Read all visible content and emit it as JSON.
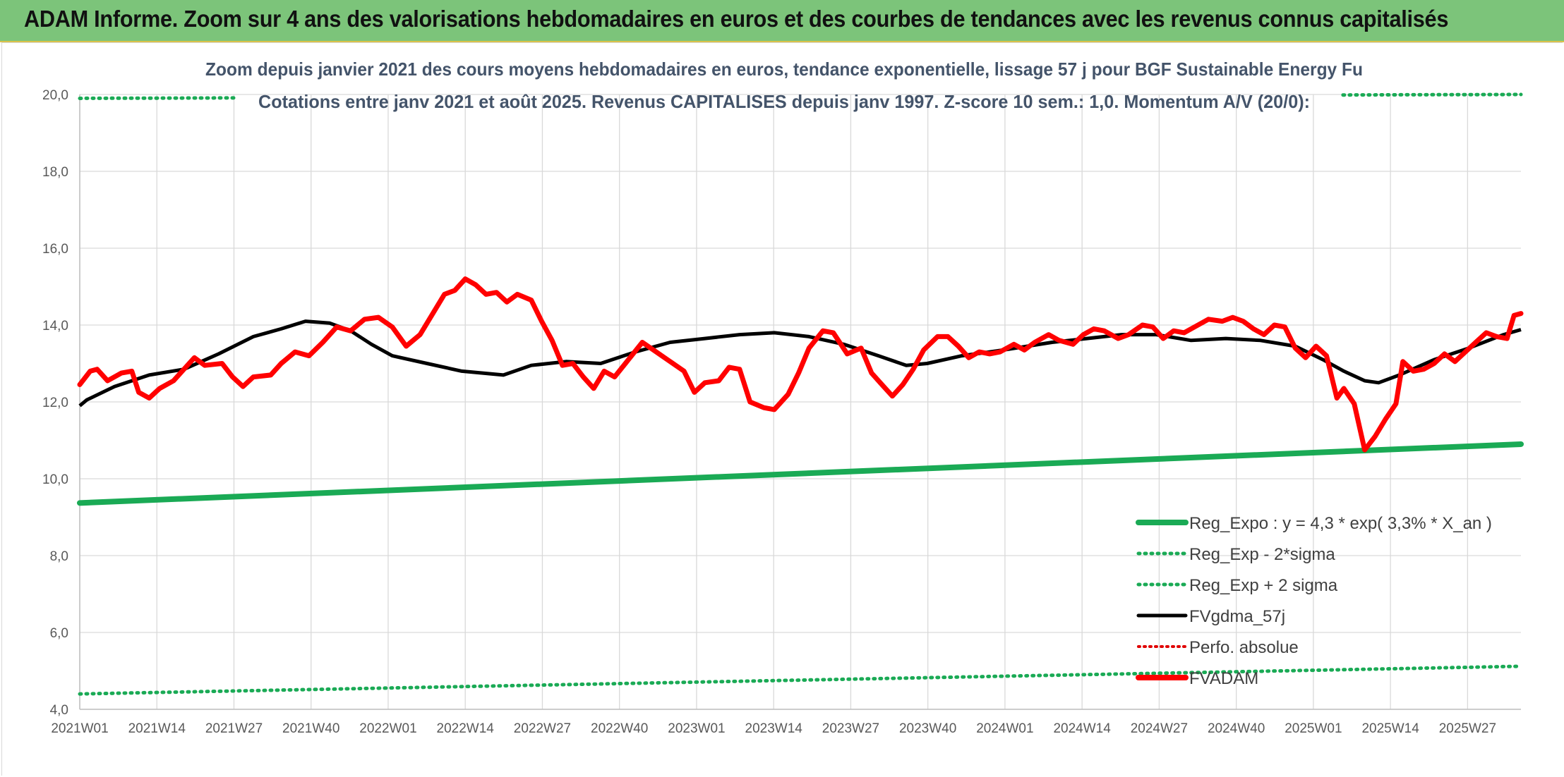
{
  "header": {
    "title": "ADAM Informe. Zoom sur 4 ans des valorisations hebdomadaires en euros et des courbes de tendances avec les revenus connus capitalisés"
  },
  "colors": {
    "banner": "#7cc47a",
    "reg_expo": "#1aaa55",
    "band": "#1aaa55",
    "gdma": "#000000",
    "perfo": "#e00000",
    "fvadam": "#ff0000",
    "title_text": "#44546a"
  },
  "chart_data": {
    "type": "line",
    "title_lines": [
      "Zoom depuis janvier 2021 des cours moyens hebdomadaires en euros, tendance exponentielle, lissage 57 j pour BGF Sustainable Energy Fu",
      "Cotations entre janv 2021 et août 2025. Revenus CAPITALISES depuis janv 1997. Z-score 10 sem.: 1,0. Momentum A/V (20/0):"
    ],
    "xlabel": "",
    "ylabel": "",
    "ylim": [
      4.0,
      20.0
    ],
    "y_ticks": [
      "4,0",
      "6,0",
      "8,0",
      "10,0",
      "12,0",
      "14,0",
      "16,0",
      "18,0",
      "20,0"
    ],
    "x_ticks": [
      "2021W01",
      "2021W14",
      "2021W27",
      "2021W40",
      "2022W01",
      "2022W14",
      "2022W27",
      "2022W40",
      "2023W01",
      "2023W14",
      "2023W27",
      "2023W40",
      "2024W01",
      "2024W14",
      "2024W27",
      "2024W40",
      "2025W01",
      "2025W14",
      "2025W27"
    ],
    "n_weeks": 244,
    "grid": true,
    "legend_position": "bottom-right",
    "series": [
      {
        "name": "Reg_Expo : y = 4,3 * exp( 3,3% *  X_an )",
        "style": "solid-thick",
        "color": "#1aaa55",
        "values_from": [
          0,
          9.37
        ],
        "values_to": [
          243,
          10.9
        ]
      },
      {
        "name": "Reg_Exp - 2*sigma",
        "style": "dotted",
        "color": "#1aaa55",
        "values_from": [
          0,
          4.4
        ],
        "values_to": [
          243,
          5.12
        ]
      },
      {
        "name": "Reg_Exp + 2 sigma",
        "style": "dotted",
        "color": "#1aaa55",
        "values_from": [
          0,
          19.9
        ],
        "values_to": [
          243,
          20.0
        ]
      },
      {
        "name": "FVgdma_57j",
        "style": "solid",
        "color": "#000000",
        "points": [
          [
            0,
            11.9
          ],
          [
            2,
            12.05
          ],
          [
            10,
            12.4
          ],
          [
            20,
            12.7
          ],
          [
            30,
            12.85
          ],
          [
            40,
            13.25
          ],
          [
            50,
            13.7
          ],
          [
            58,
            13.9
          ],
          [
            65,
            14.1
          ],
          [
            72,
            14.05
          ],
          [
            78,
            13.85
          ],
          [
            84,
            13.5
          ],
          [
            90,
            13.2
          ],
          [
            100,
            13.0
          ],
          [
            110,
            12.8
          ],
          [
            122,
            12.7
          ],
          [
            130,
            12.95
          ],
          [
            140,
            13.05
          ],
          [
            150,
            13.0
          ],
          [
            160,
            13.3
          ],
          [
            170,
            13.55
          ],
          [
            180,
            13.65
          ],
          [
            190,
            13.75
          ],
          [
            200,
            13.8
          ],
          [
            210,
            13.7
          ],
          [
            220,
            13.5
          ],
          [
            230,
            13.2
          ],
          [
            238,
            12.95
          ],
          [
            244,
            13.0
          ],
          [
            254,
            13.2
          ],
          [
            266,
            13.35
          ],
          [
            280,
            13.55
          ],
          [
            290,
            13.65
          ],
          [
            300,
            13.75
          ],
          [
            310,
            13.75
          ],
          [
            320,
            13.6
          ],
          [
            330,
            13.65
          ],
          [
            340,
            13.6
          ],
          [
            350,
            13.45
          ],
          [
            358,
            13.1
          ],
          [
            364,
            12.8
          ],
          [
            370,
            12.55
          ],
          [
            374,
            12.5
          ],
          [
            380,
            12.7
          ],
          [
            390,
            13.1
          ],
          [
            400,
            13.4
          ],
          [
            410,
            13.75
          ],
          [
            415,
            13.88
          ]
        ]
      },
      {
        "name": "Perfo. absolue",
        "style": "dotted",
        "color": "#e00000"
      },
      {
        "name": "FVADAM",
        "style": "solid-thick",
        "color": "#ff0000",
        "points": [
          [
            0,
            12.45
          ],
          [
            3,
            12.8
          ],
          [
            5,
            12.85
          ],
          [
            8,
            12.55
          ],
          [
            12,
            12.75
          ],
          [
            15,
            12.8
          ],
          [
            17,
            12.25
          ],
          [
            20,
            12.1
          ],
          [
            23,
            12.35
          ],
          [
            27,
            12.55
          ],
          [
            30,
            12.85
          ],
          [
            33,
            13.15
          ],
          [
            36,
            12.95
          ],
          [
            41,
            13.0
          ],
          [
            44,
            12.65
          ],
          [
            47,
            12.4
          ],
          [
            50,
            12.65
          ],
          [
            55,
            12.7
          ],
          [
            58,
            13.0
          ],
          [
            62,
            13.3
          ],
          [
            66,
            13.2
          ],
          [
            70,
            13.55
          ],
          [
            74,
            13.95
          ],
          [
            78,
            13.85
          ],
          [
            82,
            14.15
          ],
          [
            86,
            14.2
          ],
          [
            90,
            13.95
          ],
          [
            94,
            13.45
          ],
          [
            98,
            13.75
          ],
          [
            102,
            14.35
          ],
          [
            105,
            14.8
          ],
          [
            108,
            14.9
          ],
          [
            111,
            15.2
          ],
          [
            114,
            15.05
          ],
          [
            117,
            14.8
          ],
          [
            120,
            14.85
          ],
          [
            123,
            14.6
          ],
          [
            126,
            14.8
          ],
          [
            130,
            14.65
          ],
          [
            133,
            14.1
          ],
          [
            136,
            13.6
          ],
          [
            139,
            12.95
          ],
          [
            142,
            13.0
          ],
          [
            145,
            12.65
          ],
          [
            148,
            12.35
          ],
          [
            151,
            12.8
          ],
          [
            154,
            12.65
          ],
          [
            158,
            13.1
          ],
          [
            162,
            13.55
          ],
          [
            166,
            13.3
          ],
          [
            170,
            13.05
          ],
          [
            174,
            12.8
          ],
          [
            177,
            12.25
          ],
          [
            180,
            12.5
          ],
          [
            184,
            12.55
          ],
          [
            187,
            12.9
          ],
          [
            190,
            12.85
          ],
          [
            193,
            12.0
          ],
          [
            197,
            11.85
          ],
          [
            200,
            11.8
          ],
          [
            204,
            12.2
          ],
          [
            207,
            12.75
          ],
          [
            210,
            13.4
          ],
          [
            214,
            13.85
          ],
          [
            217,
            13.8
          ],
          [
            221,
            13.25
          ],
          [
            225,
            13.4
          ],
          [
            228,
            12.75
          ],
          [
            231,
            12.45
          ],
          [
            234,
            12.15
          ],
          [
            237,
            12.45
          ],
          [
            240,
            12.85
          ],
          [
            243,
            13.35
          ],
          [
            247,
            13.7
          ],
          [
            250,
            13.7
          ]
        ]
      }
    ]
  }
}
